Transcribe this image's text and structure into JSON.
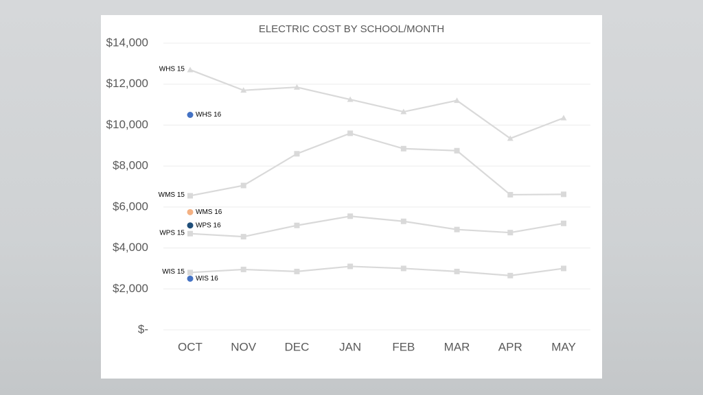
{
  "chart_data": {
    "type": "line",
    "title": "ELECTRIC COST BY SCHOOL/MONTH",
    "categories": [
      "OCT",
      "NOV",
      "DEC",
      "JAN",
      "FEB",
      "MAR",
      "APR",
      "MAY"
    ],
    "ylim": [
      0,
      14000
    ],
    "yticks": [
      {
        "value": 0,
        "label": "$-"
      },
      {
        "value": 2000,
        "label": "$2,000"
      },
      {
        "value": 4000,
        "label": "$4,000"
      },
      {
        "value": 6000,
        "label": "$6,000"
      },
      {
        "value": 8000,
        "label": "$8,000"
      },
      {
        "value": 10000,
        "label": "$10,000"
      },
      {
        "value": 12000,
        "label": "$12,000"
      },
      {
        "value": 14000,
        "label": "$14,000"
      }
    ],
    "grid": true,
    "series": [
      {
        "name": "WHS 15",
        "color": "#d9d9d9",
        "marker": "triangle",
        "line": true,
        "values": [
          12700,
          11700,
          11850,
          11250,
          10650,
          11200,
          9350,
          10350
        ]
      },
      {
        "name": "WMS 15",
        "color": "#d9d9d9",
        "marker": "square",
        "line": true,
        "values": [
          6550,
          7050,
          8600,
          9600,
          8850,
          8750,
          6600,
          6620
        ]
      },
      {
        "name": "WPS 15",
        "color": "#d9d9d9",
        "marker": "square",
        "line": true,
        "values": [
          4700,
          4550,
          5100,
          5550,
          5300,
          4900,
          4750,
          5200
        ]
      },
      {
        "name": "WIS 15",
        "color": "#d9d9d9",
        "marker": "square",
        "line": true,
        "values": [
          2800,
          2950,
          2850,
          3100,
          3000,
          2850,
          2650,
          3000
        ]
      },
      {
        "name": "WHS 16",
        "color": "#4472c4",
        "marker": "circle",
        "line": false,
        "values": [
          10500,
          null,
          null,
          null,
          null,
          null,
          null,
          null
        ]
      },
      {
        "name": "WMS 16",
        "color": "#f4b183",
        "marker": "circle",
        "line": false,
        "values": [
          5750,
          null,
          null,
          null,
          null,
          null,
          null,
          null
        ]
      },
      {
        "name": "WPS 16",
        "color": "#1f4e79",
        "marker": "circle",
        "line": false,
        "values": [
          5100,
          null,
          null,
          null,
          null,
          null,
          null,
          null
        ]
      },
      {
        "name": "WIS 16",
        "color": "#4472c4",
        "marker": "circle",
        "line": false,
        "values": [
          2500,
          null,
          null,
          null,
          null,
          null,
          null,
          null
        ]
      }
    ]
  }
}
